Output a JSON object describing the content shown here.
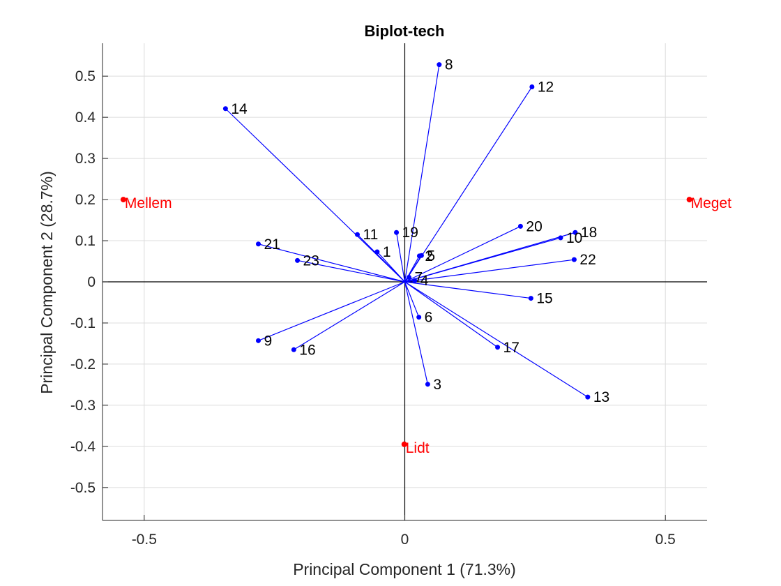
{
  "chart_data": {
    "type": "scatter",
    "title": "Biplot-tech",
    "xlabel": "Principal Component 1 (71.3%)",
    "ylabel": "Principal Component 2 (28.7%)",
    "xlim": [
      -0.58,
      0.58
    ],
    "ylim": [
      -0.58,
      0.58
    ],
    "xticks": [
      -0.5,
      0,
      0.5
    ],
    "xtick_labels": [
      "-0.5",
      "0",
      "0.5"
    ],
    "yticks": [
      -0.5,
      -0.4,
      -0.3,
      -0.2,
      -0.1,
      0,
      0.1,
      0.2,
      0.3,
      0.4,
      0.5
    ],
    "ytick_labels": [
      "-0.5",
      "-0.4",
      "-0.3",
      "-0.2",
      "-0.1",
      "0",
      "0.1",
      "0.2",
      "0.3",
      "0.4",
      "0.5"
    ],
    "grid": true,
    "colors": {
      "vectors": "#0000ff",
      "categories": "#ff0000",
      "labels": "#000000",
      "grid": "#dcdcdc",
      "axes": "#262626"
    },
    "series": [
      {
        "name": "",
        "kind": "vectors",
        "color": "#0000ff",
        "points": [
          {
            "label": "1",
            "x": -0.053,
            "y": 0.073
          },
          {
            "label": "2",
            "x": 0.028,
            "y": 0.063
          },
          {
            "label": "3",
            "x": 0.044,
            "y": -0.249
          },
          {
            "label": "4",
            "x": 0.019,
            "y": 0.003
          },
          {
            "label": "5",
            "x": 0.032,
            "y": 0.064
          },
          {
            "label": "6",
            "x": 0.027,
            "y": -0.086
          },
          {
            "label": "7",
            "x": 0.008,
            "y": 0.011
          },
          {
            "label": "8",
            "x": 0.066,
            "y": 0.528
          },
          {
            "label": "9",
            "x": -0.281,
            "y": -0.143
          },
          {
            "label": "10",
            "x": 0.299,
            "y": 0.107
          },
          {
            "label": "11",
            "x": -0.091,
            "y": 0.115
          },
          {
            "label": "12",
            "x": 0.244,
            "y": 0.474
          },
          {
            "label": "13",
            "x": 0.351,
            "y": -0.28
          },
          {
            "label": "14",
            "x": -0.344,
            "y": 0.421
          },
          {
            "label": "15",
            "x": 0.242,
            "y": -0.04
          },
          {
            "label": "16",
            "x": -0.213,
            "y": -0.165
          },
          {
            "label": "17",
            "x": 0.178,
            "y": -0.159
          },
          {
            "label": "18",
            "x": 0.327,
            "y": 0.12
          },
          {
            "label": "19",
            "x": -0.016,
            "y": 0.12
          },
          {
            "label": "20",
            "x": 0.222,
            "y": 0.135
          },
          {
            "label": "21",
            "x": -0.281,
            "y": 0.092
          },
          {
            "label": "22",
            "x": 0.325,
            "y": 0.054
          },
          {
            "label": "23",
            "x": -0.206,
            "y": 0.052
          }
        ]
      },
      {
        "name": "",
        "kind": "categories",
        "color": "#ff0000",
        "points": [
          {
            "label": "Mellem",
            "x": -0.54,
            "y": 0.2
          },
          {
            "label": "Meget",
            "x": 0.546,
            "y": 0.2
          },
          {
            "label": "Lidt",
            "x": -0.001,
            "y": -0.395
          }
        ]
      }
    ]
  }
}
